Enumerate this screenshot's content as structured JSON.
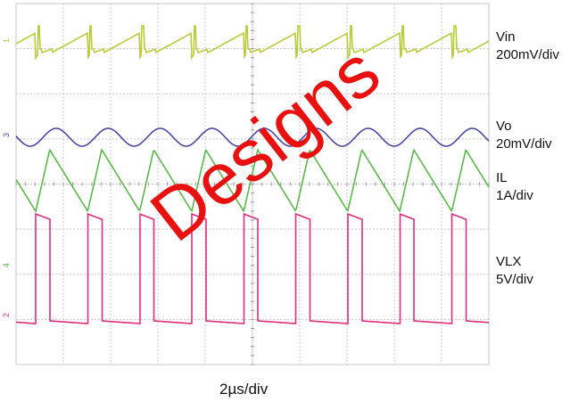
{
  "chart_data": {
    "type": "line",
    "title": "",
    "xlabel": "2µs/div",
    "ylabel": "",
    "grid": true,
    "x_divisions": 10,
    "y_divisions": 8,
    "x_range_us": [
      0,
      20
    ],
    "switching_period_us": 2.2,
    "series": [
      {
        "name": "Vin",
        "scale": "200mV/div",
        "color": "#b8cc3a",
        "waveform": "sawtooth ripple with switching spikes",
        "ripple_pp_mV": 160,
        "channel": "1"
      },
      {
        "name": "Vo",
        "scale": "20mV/div",
        "color": "#4b4aa8",
        "waveform": "sinusoidal ripple",
        "ripple_pp_mV": 20,
        "channel": "3"
      },
      {
        "name": "IL",
        "scale": "1A/div",
        "color": "#5cb84a",
        "waveform": "triangle",
        "ripple_pp_A": 1.6,
        "channel": "4"
      },
      {
        "name": "VLX",
        "scale": "5V/div",
        "color": "#dd2f7d",
        "waveform": "square",
        "high_V": 20,
        "low_V": 0,
        "duty": 0.27,
        "channel": "2"
      }
    ],
    "watermark": "Designs"
  },
  "labels": {
    "vin_name": "Vin",
    "vin_scale": "200mV/div",
    "vo_name": "Vo",
    "vo_scale": "20mV/div",
    "il_name": "IL",
    "il_scale": "1A/div",
    "vlx_name": "VLX",
    "vlx_scale": "5V/div",
    "timebase": "2µs/div",
    "watermark": "Designs"
  },
  "colors": {
    "grid": "#c8c8c8",
    "vin": "#b8cc3a",
    "vo": "#4b4aa8",
    "il": "#5cb84a",
    "vlx": "#dd2f7d",
    "watermark": "#e8110f"
  }
}
